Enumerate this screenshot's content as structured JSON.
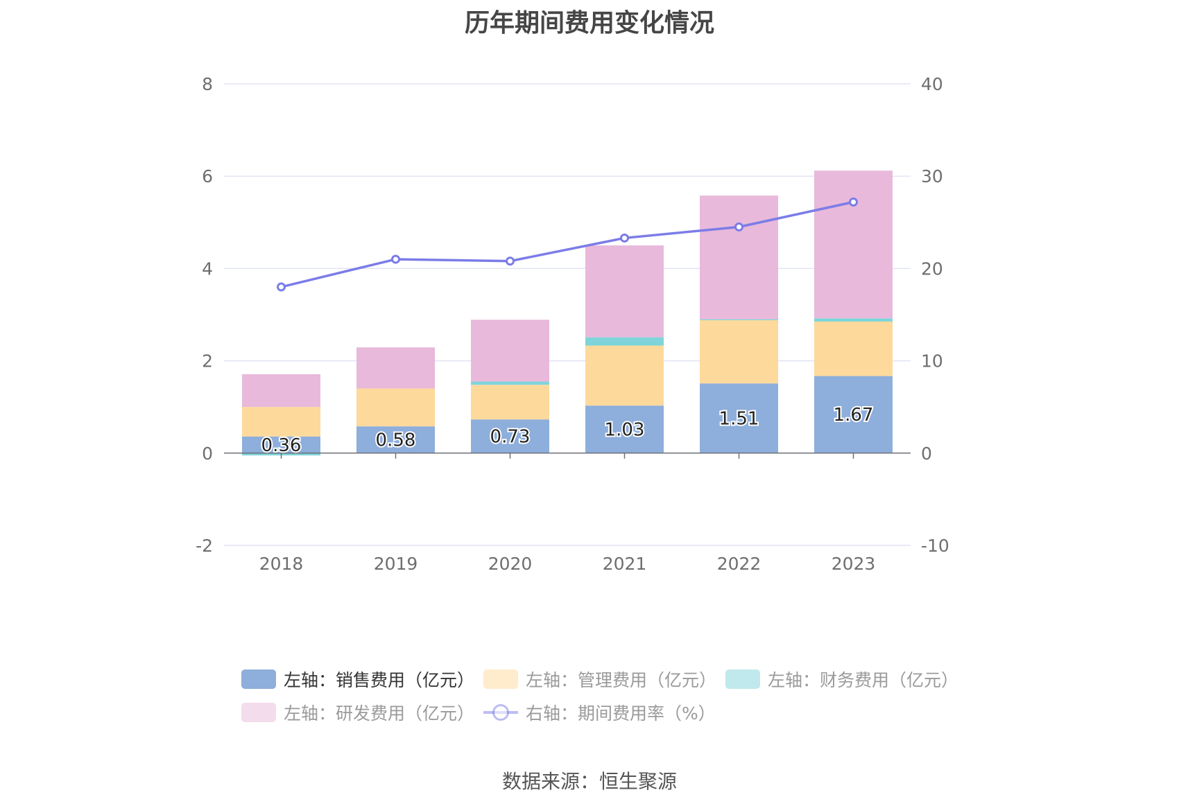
{
  "chart_data": {
    "type": "bar",
    "title": "历年期间费用变化情况",
    "categories": [
      "2018",
      "2019",
      "2020",
      "2021",
      "2022",
      "2023"
    ],
    "left_axis": {
      "ylim": [
        -2,
        8
      ],
      "ticks": [
        "-2",
        "0",
        "2",
        "4",
        "6",
        "8"
      ]
    },
    "right_axis": {
      "ylim": [
        -10,
        40
      ],
      "ticks": [
        "-10",
        "0",
        "10",
        "20",
        "30",
        "40"
      ]
    },
    "grid": true,
    "series": [
      {
        "name": "左轴：销售费用（亿元）",
        "type": "bar",
        "axis": "left",
        "color": "#8eaedb",
        "values": [
          0.36,
          0.58,
          0.73,
          1.03,
          1.51,
          1.67
        ],
        "labels": [
          "0.36",
          "0.58",
          "0.73",
          "1.03",
          "1.51",
          "1.67"
        ]
      },
      {
        "name": "左轴：管理费用（亿元）",
        "type": "bar",
        "axis": "left",
        "color": "#fdd99c",
        "values": [
          0.64,
          0.82,
          0.75,
          1.3,
          1.37,
          1.18
        ]
      },
      {
        "name": "左轴：财务费用（亿元）",
        "type": "bar",
        "axis": "left",
        "color": "#7fd4d9",
        "values": [
          -0.05,
          0.0,
          0.07,
          0.18,
          0.02,
          0.07
        ]
      },
      {
        "name": "左轴：研发费用（亿元）",
        "type": "bar",
        "axis": "left",
        "color": "#e8b9da",
        "values": [
          0.71,
          0.89,
          1.34,
          1.99,
          2.68,
          3.2
        ]
      },
      {
        "name": "右轴：期间费用率（%）",
        "type": "line",
        "axis": "right",
        "color": "#7b7ce8",
        "values": [
          18.0,
          21.0,
          20.8,
          23.3,
          24.5,
          27.2
        ]
      }
    ],
    "legend_position": "bottom"
  },
  "source": "数据来源：恒生聚源"
}
